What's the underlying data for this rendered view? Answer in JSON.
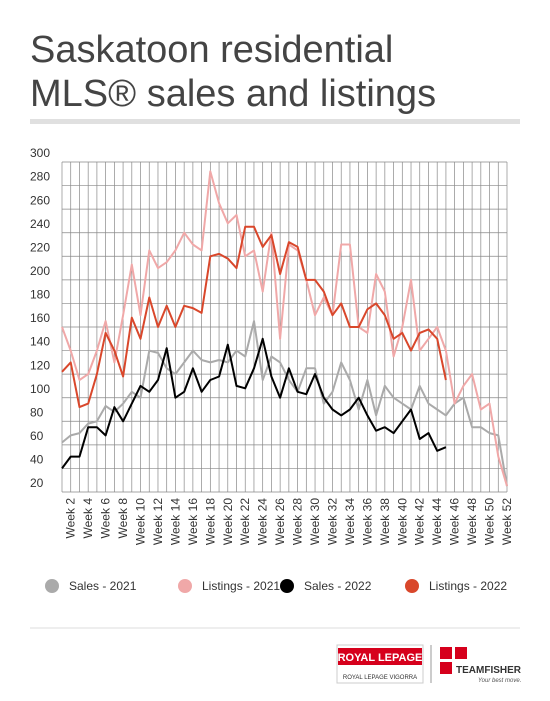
{
  "chart_data": {
    "type": "line",
    "title": "Saskatoon residential MLS® sales and listings",
    "categories": [
      null,
      "Week 2",
      null,
      "Week 4",
      null,
      "Week 6",
      null,
      "Week 8",
      null,
      "Week 10",
      null,
      "Week 12",
      null,
      "Week 14",
      null,
      "Week 16",
      null,
      "Week 18",
      null,
      "Week 20",
      null,
      "Week 22",
      null,
      "Week 24",
      null,
      "Week 26",
      null,
      "Week 28",
      null,
      "Week 30",
      null,
      "Week 32",
      null,
      "Week 34",
      null,
      "Week 36",
      null,
      "Week 38",
      null,
      "Week 40",
      null,
      "Week 42",
      null,
      "Week 44",
      null,
      "Week 46",
      null,
      "Week 48",
      null,
      "Week 50",
      null,
      "Week 52"
    ],
    "series": [
      {
        "name": "Sales - 2021",
        "color": "#aaaaaa",
        "values": [
          62,
          68,
          70,
          78,
          80,
          93,
          88,
          95,
          105,
          100,
          140,
          138,
          125,
          120,
          130,
          140,
          132,
          130,
          132,
          130,
          140,
          135,
          165,
          115,
          135,
          130,
          115,
          105,
          125,
          125,
          95,
          105,
          130,
          115,
          90,
          115,
          85,
          110,
          100,
          95,
          90,
          110,
          95,
          90,
          85,
          95,
          100,
          75,
          75,
          70,
          68,
          25
        ]
      },
      {
        "name": "Listings - 2021",
        "color": "#f0a8a8",
        "values": [
          160,
          140,
          115,
          120,
          140,
          165,
          130,
          170,
          213,
          170,
          225,
          210,
          215,
          225,
          240,
          230,
          225,
          292,
          265,
          248,
          255,
          220,
          225,
          190,
          240,
          150,
          230,
          225,
          200,
          170,
          185,
          170,
          230,
          230,
          160,
          155,
          205,
          190,
          135,
          160,
          200,
          140,
          150,
          160,
          140,
          95,
          110,
          120,
          90,
          95,
          50,
          25
        ]
      },
      {
        "name": "Sales - 2022",
        "color": "#000000",
        "values": [
          40,
          50,
          50,
          75,
          75,
          68,
          92,
          80,
          95,
          110,
          105,
          115,
          142,
          100,
          105,
          125,
          105,
          115,
          118,
          145,
          110,
          108,
          125,
          150,
          118,
          100,
          125,
          105,
          103,
          120,
          100,
          90,
          85,
          90,
          100,
          85,
          72,
          75,
          70,
          80,
          90,
          65,
          70,
          55,
          58,
          null,
          null,
          null,
          null,
          null,
          null,
          null
        ]
      },
      {
        "name": "Listings - 2022",
        "color": "#d9472b",
        "values": [
          122,
          130,
          92,
          95,
          120,
          155,
          140,
          118,
          168,
          150,
          185,
          160,
          178,
          160,
          178,
          176,
          172,
          220,
          222,
          218,
          210,
          245,
          245,
          228,
          238,
          205,
          232,
          228,
          200,
          200,
          190,
          170,
          180,
          160,
          160,
          175,
          180,
          170,
          150,
          155,
          140,
          155,
          158,
          150,
          115,
          null,
          null,
          null,
          null,
          null,
          null,
          null
        ]
      }
    ],
    "ylim": [
      20,
      300
    ],
    "yticks": [
      20,
      40,
      60,
      80,
      100,
      120,
      140,
      160,
      180,
      200,
      220,
      240,
      260,
      280,
      300
    ],
    "grid": true
  },
  "logos": {
    "royal_lepage": "ROYAL LEPAGE",
    "royal_lepage_sub": "ROYAL LEPAGE VIGORRA",
    "teamfisher": "TEAMFISHER",
    "tagline": "Your best move."
  }
}
